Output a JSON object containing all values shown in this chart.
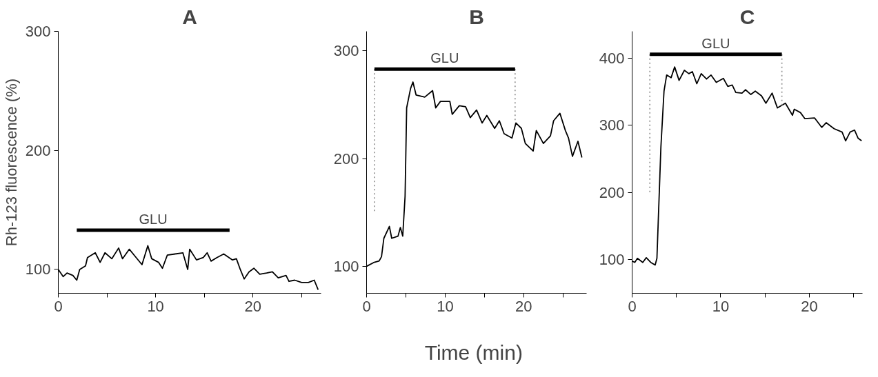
{
  "chart_data": [
    {
      "type": "line",
      "title": "A",
      "ylabel": "Rh-123 fluorescence (%)",
      "xlim": [
        0,
        27
      ],
      "ylim": [
        80,
        300
      ],
      "xticks": [
        0,
        {
          "value": 5,
          "label": null
        },
        10,
        {
          "value": 15,
          "label": null
        },
        20,
        {
          "value": 25,
          "label": null
        }
      ],
      "yticks": [
        100,
        200,
        300
      ],
      "grid": false,
      "marker": "none",
      "series": [
        {
          "color": "#000000",
          "line_style": "solid",
          "x": [
            0,
            0.5,
            0.9,
            1.5,
            1.9,
            2.2,
            2.8,
            3.0,
            3.8,
            4.3,
            4.8,
            5.5,
            6.2,
            6.6,
            7.3,
            7.9,
            8.6,
            9.2,
            9.6,
            10.3,
            10.7,
            11.2,
            12.0,
            12.8,
            13.3,
            13.5,
            14.2,
            14.9,
            15.3,
            15.7,
            16.3,
            17.0,
            17.9,
            18.3,
            18.7,
            19.1,
            19.6,
            20.1,
            20.7,
            21.4,
            22.0,
            22.6,
            23.4,
            23.7,
            24.3,
            25.0,
            25.7,
            26.3,
            26.7
          ],
          "values": [
            100,
            94,
            97,
            95,
            91,
            100,
            103,
            110,
            114,
            106,
            114,
            109,
            118,
            109,
            117,
            111,
            104,
            120,
            109,
            106,
            101,
            112,
            113,
            114,
            100,
            117,
            108,
            110,
            114,
            107,
            110,
            113,
            108,
            109,
            100,
            92,
            98,
            101,
            96,
            97,
            98,
            93,
            95,
            90,
            91,
            89,
            89,
            91,
            83
          ]
        },
        {
          "color": "#000000",
          "line_style": "solid",
          "x": [
            1.9,
            17.6
          ],
          "values": [
            133,
            133
          ]
        }
      ],
      "annotations": [
        "GLU"
      ]
    },
    {
      "type": "line",
      "title": "B",
      "xlabel": "Time  (min)",
      "xlim": [
        0,
        28
      ],
      "ylim": [
        75,
        318
      ],
      "xticks": [
        0,
        {
          "value": 5,
          "label": null
        },
        10,
        {
          "value": 15,
          "label": null
        },
        20,
        {
          "value": 25,
          "label": null
        }
      ],
      "yticks": [
        100,
        200,
        300
      ],
      "grid": false,
      "marker": "none",
      "series": [
        {
          "color": "#000000",
          "line_style": "solid",
          "x": [
            0,
            0.9,
            1.6,
            1.9,
            2.2,
            2.9,
            3.2,
            4.0,
            4.3,
            4.6,
            4.9,
            5.1,
            5.6,
            5.9,
            6.3,
            7.4,
            8.4,
            8.8,
            9.4,
            10.6,
            10.9,
            11.8,
            12.6,
            13.2,
            14.0,
            14.7,
            15.3,
            16.3,
            16.9,
            17.5,
            18.5,
            19.0,
            19.7,
            20.2,
            21.2,
            21.6,
            22.5,
            23.4,
            23.8,
            24.6,
            25.3,
            25.7,
            26.2,
            26.9,
            27.4
          ],
          "values": [
            100,
            103.5,
            105,
            109,
            126,
            137,
            126,
            128,
            136,
            128,
            165,
            247,
            265,
            271,
            259,
            257,
            263,
            247,
            253,
            253,
            241,
            249,
            248,
            238,
            245,
            233,
            240,
            228,
            235,
            223,
            219,
            233,
            228,
            214,
            207,
            226,
            214,
            221,
            235,
            242,
            226,
            219,
            202,
            216,
            201
          ]
        },
        {
          "color": "#999999",
          "line_style": "dotted",
          "x": [
            1.0,
            1.0
          ],
          "values": [
            283,
            151
          ]
        },
        {
          "color": "#999999",
          "line_style": "dotted",
          "x": [
            18.9,
            18.9
          ],
          "values": [
            283,
            233
          ]
        },
        {
          "color": "#000000",
          "line_style": "solid",
          "x": [
            1.0,
            18.9
          ],
          "values": [
            283,
            283
          ]
        }
      ],
      "annotations": [
        "GLU"
      ]
    },
    {
      "type": "line",
      "title": "C",
      "xlim": [
        0,
        26
      ],
      "ylim": [
        50,
        440
      ],
      "xticks": [
        0,
        {
          "value": 5,
          "label": null
        },
        10,
        {
          "value": 15,
          "label": null
        },
        20,
        {
          "value": 25,
          "label": null
        }
      ],
      "yticks": [
        100,
        200,
        300,
        400
      ],
      "grid": false,
      "marker": "none",
      "series": [
        {
          "color": "#000000",
          "line_style": "solid",
          "x": [
            0,
            0.3,
            0.6,
            1.2,
            1.6,
            2.1,
            2.6,
            2.8,
            3.25,
            3.6,
            3.9,
            4.4,
            4.8,
            5.3,
            5.9,
            6.4,
            6.8,
            7.3,
            7.8,
            8.4,
            8.9,
            9.5,
            10.3,
            10.8,
            11.3,
            11.7,
            12.4,
            12.8,
            13.4,
            13.9,
            14.6,
            15.1,
            15.8,
            16.4,
            17.3,
            18.1,
            18.3,
            19.0,
            19.5,
            20.6,
            21.4,
            21.9,
            22.8,
            23.7,
            24.1,
            24.6,
            25.1,
            25.5,
            25.9
          ],
          "values": [
            98,
            96,
            102,
            96,
            103,
            96,
            92,
            102,
            268,
            351,
            375,
            371,
            387,
            367,
            382,
            377,
            380,
            362,
            377,
            369,
            375,
            364,
            370,
            358,
            360,
            349,
            348,
            353,
            346,
            351,
            344,
            333,
            348,
            326,
            333,
            315,
            324,
            319,
            310,
            311,
            297,
            304,
            295,
            290,
            277,
            290,
            293,
            281,
            277
          ]
        },
        {
          "color": "#999999",
          "line_style": "dotted",
          "x": [
            2.0,
            2.0
          ],
          "values": [
            406,
            199
          ]
        },
        {
          "color": "#999999",
          "line_style": "dotted",
          "x": [
            16.9,
            16.9
          ],
          "values": [
            406,
            330
          ]
        },
        {
          "color": "#000000",
          "line_style": "solid",
          "x": [
            2.0,
            16.9
          ],
          "values": [
            406,
            406
          ]
        }
      ],
      "annotations": [
        "GLU"
      ]
    }
  ]
}
